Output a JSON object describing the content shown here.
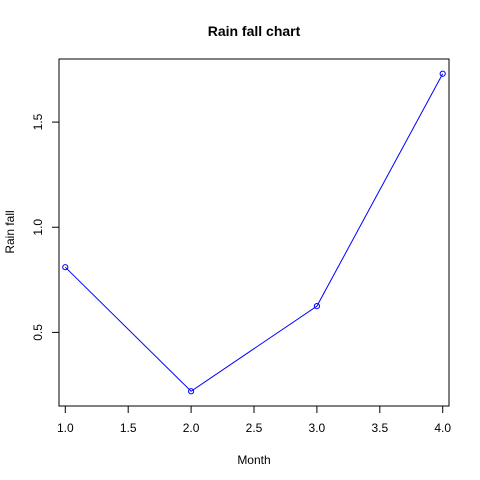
{
  "chart_data": {
    "type": "line",
    "title": "Rain fall chart",
    "xlabel": "Month",
    "ylabel": "Rain fall",
    "x": [
      1.0,
      2.0,
      3.0,
      4.0
    ],
    "series": [
      {
        "values": [
          0.81,
          0.22,
          0.625,
          1.73
        ],
        "color": "#0000ff"
      }
    ],
    "xlim": [
      0.95,
      4.05
    ],
    "ylim": [
      0.15,
      1.8
    ],
    "xticks": [
      1.0,
      1.5,
      2.0,
      2.5,
      3.0,
      3.5,
      4.0
    ],
    "xtick_labels": [
      "1.0",
      "1.5",
      "2.0",
      "2.5",
      "3.0",
      "3.5",
      "4.0"
    ],
    "yticks": [
      0.5,
      1.0,
      1.5
    ],
    "ytick_labels": [
      "0.5",
      "1.0",
      "1.5"
    ],
    "markers": "open-circle",
    "grid": false,
    "legend": "none"
  }
}
